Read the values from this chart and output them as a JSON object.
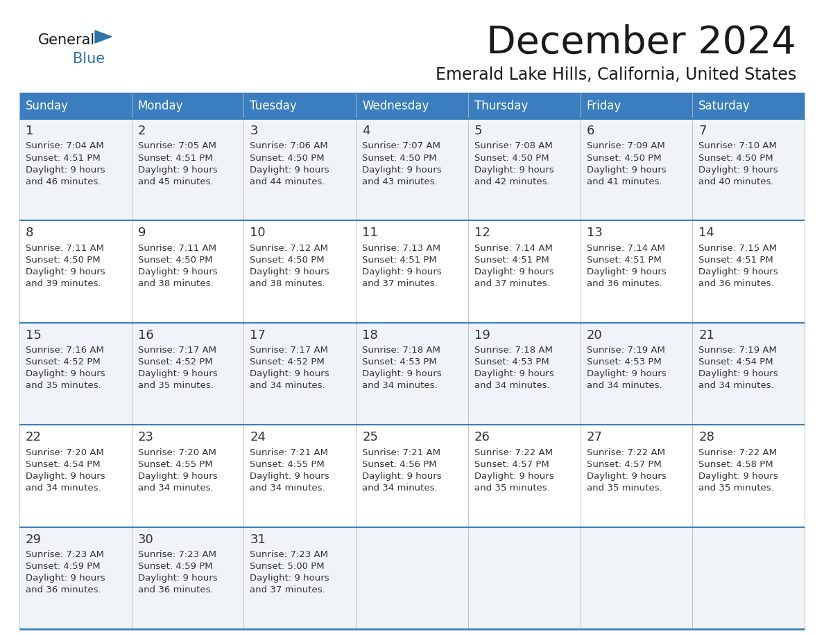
{
  "title": "December 2024",
  "subtitle": "Emerald Lake Hills, California, United States",
  "header_bg": "#3a7ebf",
  "header_text_color": "#FFFFFF",
  "cell_bg_odd": "#f0f4f8",
  "cell_bg_even": "#FFFFFF",
  "border_color": "#3a7ebf",
  "text_color": "#333333",
  "days_of_week": [
    "Sunday",
    "Monday",
    "Tuesday",
    "Wednesday",
    "Thursday",
    "Friday",
    "Saturday"
  ],
  "calendar_data": [
    [
      {
        "day": 1,
        "sunrise": "7:04 AM",
        "sunset": "4:51 PM",
        "daylight_line2": "and 46 minutes."
      },
      {
        "day": 2,
        "sunrise": "7:05 AM",
        "sunset": "4:51 PM",
        "daylight_line2": "and 45 minutes."
      },
      {
        "day": 3,
        "sunrise": "7:06 AM",
        "sunset": "4:50 PM",
        "daylight_line2": "and 44 minutes."
      },
      {
        "day": 4,
        "sunrise": "7:07 AM",
        "sunset": "4:50 PM",
        "daylight_line2": "and 43 minutes."
      },
      {
        "day": 5,
        "sunrise": "7:08 AM",
        "sunset": "4:50 PM",
        "daylight_line2": "and 42 minutes."
      },
      {
        "day": 6,
        "sunrise": "7:09 AM",
        "sunset": "4:50 PM",
        "daylight_line2": "and 41 minutes."
      },
      {
        "day": 7,
        "sunrise": "7:10 AM",
        "sunset": "4:50 PM",
        "daylight_line2": "and 40 minutes."
      }
    ],
    [
      {
        "day": 8,
        "sunrise": "7:11 AM",
        "sunset": "4:50 PM",
        "daylight_line2": "and 39 minutes."
      },
      {
        "day": 9,
        "sunrise": "7:11 AM",
        "sunset": "4:50 PM",
        "daylight_line2": "and 38 minutes."
      },
      {
        "day": 10,
        "sunrise": "7:12 AM",
        "sunset": "4:50 PM",
        "daylight_line2": "and 38 minutes."
      },
      {
        "day": 11,
        "sunrise": "7:13 AM",
        "sunset": "4:51 PM",
        "daylight_line2": "and 37 minutes."
      },
      {
        "day": 12,
        "sunrise": "7:14 AM",
        "sunset": "4:51 PM",
        "daylight_line2": "and 37 minutes."
      },
      {
        "day": 13,
        "sunrise": "7:14 AM",
        "sunset": "4:51 PM",
        "daylight_line2": "and 36 minutes."
      },
      {
        "day": 14,
        "sunrise": "7:15 AM",
        "sunset": "4:51 PM",
        "daylight_line2": "and 36 minutes."
      }
    ],
    [
      {
        "day": 15,
        "sunrise": "7:16 AM",
        "sunset": "4:52 PM",
        "daylight_line2": "and 35 minutes."
      },
      {
        "day": 16,
        "sunrise": "7:17 AM",
        "sunset": "4:52 PM",
        "daylight_line2": "and 35 minutes."
      },
      {
        "day": 17,
        "sunrise": "7:17 AM",
        "sunset": "4:52 PM",
        "daylight_line2": "and 34 minutes."
      },
      {
        "day": 18,
        "sunrise": "7:18 AM",
        "sunset": "4:53 PM",
        "daylight_line2": "and 34 minutes."
      },
      {
        "day": 19,
        "sunrise": "7:18 AM",
        "sunset": "4:53 PM",
        "daylight_line2": "and 34 minutes."
      },
      {
        "day": 20,
        "sunrise": "7:19 AM",
        "sunset": "4:53 PM",
        "daylight_line2": "and 34 minutes."
      },
      {
        "day": 21,
        "sunrise": "7:19 AM",
        "sunset": "4:54 PM",
        "daylight_line2": "and 34 minutes."
      }
    ],
    [
      {
        "day": 22,
        "sunrise": "7:20 AM",
        "sunset": "4:54 PM",
        "daylight_line2": "and 34 minutes."
      },
      {
        "day": 23,
        "sunrise": "7:20 AM",
        "sunset": "4:55 PM",
        "daylight_line2": "and 34 minutes."
      },
      {
        "day": 24,
        "sunrise": "7:21 AM",
        "sunset": "4:55 PM",
        "daylight_line2": "and 34 minutes."
      },
      {
        "day": 25,
        "sunrise": "7:21 AM",
        "sunset": "4:56 PM",
        "daylight_line2": "and 34 minutes."
      },
      {
        "day": 26,
        "sunrise": "7:22 AM",
        "sunset": "4:57 PM",
        "daylight_line2": "and 35 minutes."
      },
      {
        "day": 27,
        "sunrise": "7:22 AM",
        "sunset": "4:57 PM",
        "daylight_line2": "and 35 minutes."
      },
      {
        "day": 28,
        "sunrise": "7:22 AM",
        "sunset": "4:58 PM",
        "daylight_line2": "and 35 minutes."
      }
    ],
    [
      {
        "day": 29,
        "sunrise": "7:23 AM",
        "sunset": "4:59 PM",
        "daylight_line2": "and 36 minutes."
      },
      {
        "day": 30,
        "sunrise": "7:23 AM",
        "sunset": "4:59 PM",
        "daylight_line2": "and 36 minutes."
      },
      {
        "day": 31,
        "sunrise": "7:23 AM",
        "sunset": "5:00 PM",
        "daylight_line2": "and 37 minutes."
      },
      null,
      null,
      null,
      null
    ]
  ],
  "logo_triangle_color": "#2E74A8",
  "logo_general_color": "#1a1a1a",
  "logo_blue_color": "#2E74A8",
  "title_color": "#1a1a1a",
  "subtitle_color": "#1a1a1a"
}
